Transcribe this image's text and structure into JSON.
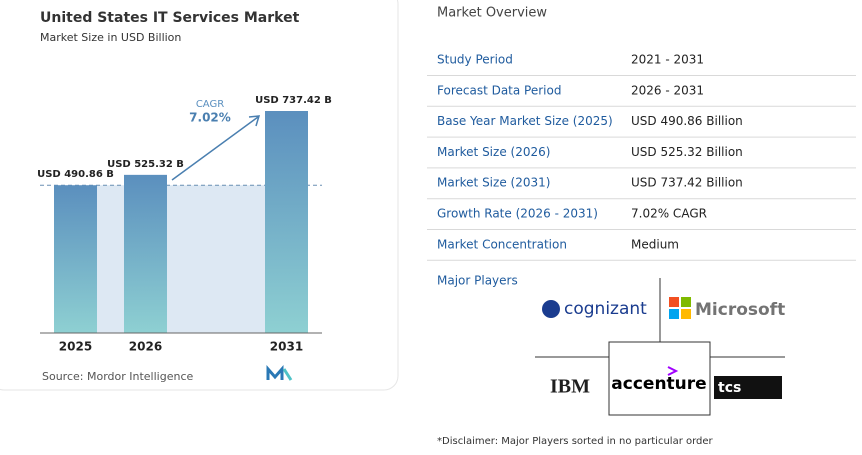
{
  "chart_data": {
    "type": "bar",
    "title": "United States IT Services Market",
    "subtitle": "Market Size in USD Billion",
    "categories": [
      "2025",
      "2026",
      "2031"
    ],
    "values": [
      490.86,
      525.32,
      737.42
    ],
    "value_labels": [
      "USD 490.86 B",
      "USD 525.32 B",
      "USD 737.42 B"
    ],
    "annotation": {
      "label": "CAGR",
      "value": "7.02%"
    },
    "source": "Source: Mordor Intelligence"
  },
  "overview": {
    "title": "Market Overview",
    "rows": [
      [
        "Study Period",
        "2021 - 2031"
      ],
      [
        "Forecast Data Period",
        "2026 - 2031"
      ],
      [
        "Base Year Market Size (2025)",
        "USD 490.86 Billion"
      ],
      [
        "Market Size (2026)",
        "USD 525.32 Billion"
      ],
      [
        "Market Size (2031)",
        "USD 737.42 Billion"
      ],
      [
        "Growth Rate (2026 - 2031)",
        "7.02% CAGR"
      ],
      [
        "Market Concentration",
        "Medium"
      ]
    ],
    "players_title": "Major Players",
    "players": [
      "cognizant",
      "Microsoft",
      "IBM",
      "accenture",
      "tcs"
    ],
    "disclaimer": "*Disclaimer: Major Players sorted in no particular order"
  }
}
